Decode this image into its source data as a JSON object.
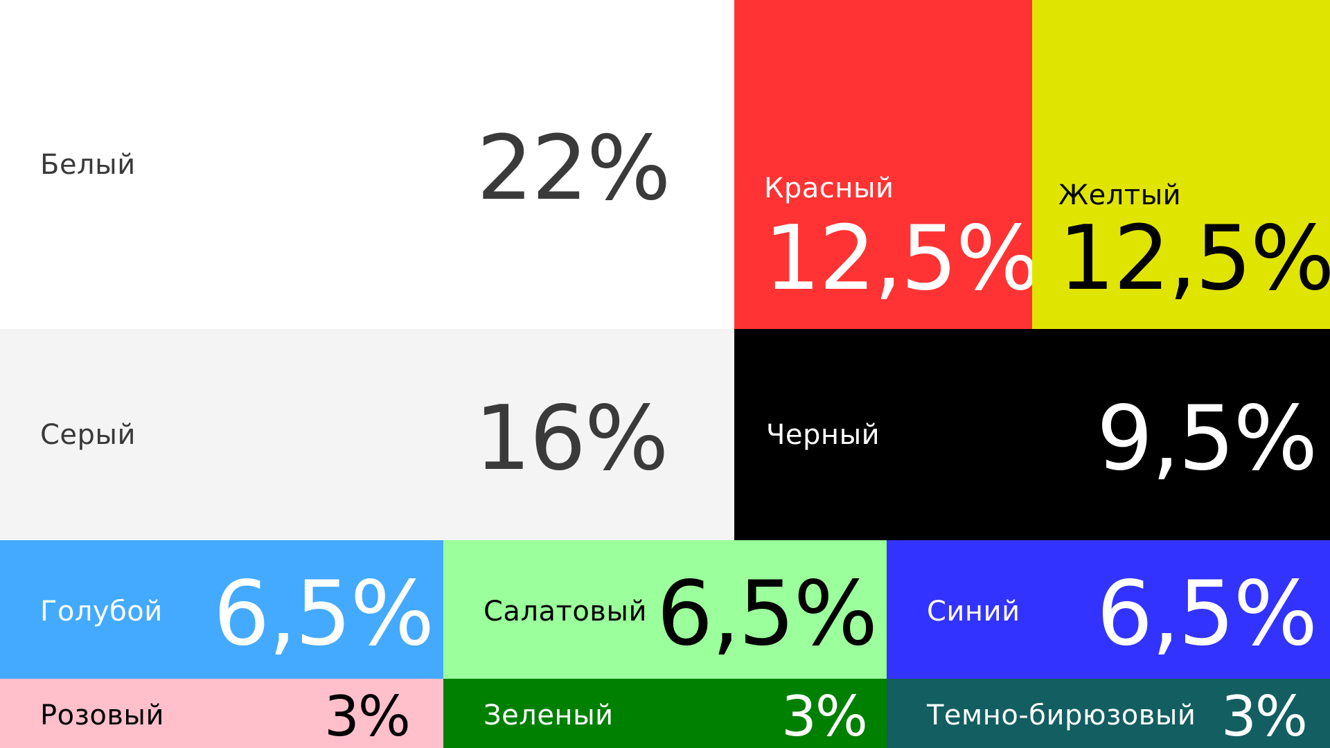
{
  "chart_data": {
    "type": "treemap",
    "title": "",
    "unit": "%",
    "items": [
      {
        "name": "Белый",
        "value": 22,
        "value_label": "22%",
        "color": "#FFFFFF",
        "text_color": "#3A3A3A"
      },
      {
        "name": "Красный",
        "value": 12.5,
        "value_label": "12,5%",
        "color": "#FF3333",
        "text_color": "#FFFFFF"
      },
      {
        "name": "Желтый",
        "value": 12.5,
        "value_label": "12,5%",
        "color": "#E0E500",
        "text_color": "#000000"
      },
      {
        "name": "Серый",
        "value": 16,
        "value_label": "16%",
        "color": "#F4F4F4",
        "text_color": "#3A3A3A"
      },
      {
        "name": "Черный",
        "value": 9.5,
        "value_label": "9,5%",
        "color": "#000000",
        "text_color": "#FFFFFF"
      },
      {
        "name": "Голубой",
        "value": 6.5,
        "value_label": "6,5%",
        "color": "#44AAFF",
        "text_color": "#FFFFFF"
      },
      {
        "name": "Салатовый",
        "value": 6.5,
        "value_label": "6,5%",
        "color": "#9BFF9B",
        "text_color": "#000000"
      },
      {
        "name": "Синий",
        "value": 6.5,
        "value_label": "6,5%",
        "color": "#3333FF",
        "text_color": "#FFFFFF"
      },
      {
        "name": "Розовый",
        "value": 3,
        "value_label": "3%",
        "color": "#FFC0CB",
        "text_color": "#000000"
      },
      {
        "name": "Зеленый",
        "value": 3,
        "value_label": "3%",
        "color": "#008000",
        "text_color": "#FFFFFF"
      },
      {
        "name": "Темно-бирюзовый",
        "value": 3,
        "value_label": "3%",
        "color": "#135E60",
        "text_color": "#FFFFFF"
      }
    ]
  }
}
